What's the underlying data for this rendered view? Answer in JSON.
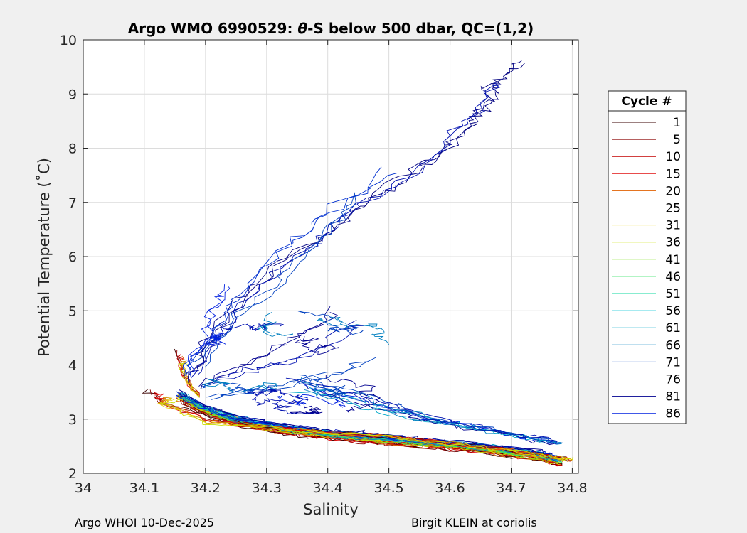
{
  "chart_data": {
    "type": "line",
    "title_prefix": "Argo WMO 6990529: ",
    "title_theta": "θ",
    "title_suffix": "-S below 500 dbar,  QC=(1,2)",
    "xlabel": "Salinity",
    "ylabel": "Potential Temperature (˚C)",
    "xlim": [
      34.0,
      34.81
    ],
    "ylim": [
      2,
      10
    ],
    "xticks": [
      34.0,
      34.1,
      34.2,
      34.3,
      34.4,
      34.5,
      34.6,
      34.7,
      34.8
    ],
    "xtick_labels": [
      "34",
      "34.1",
      "34.2",
      "34.3",
      "34.4",
      "34.5",
      "34.6",
      "34.7",
      "34.8"
    ],
    "yticks": [
      2,
      3,
      4,
      5,
      6,
      7,
      8,
      9,
      10
    ],
    "ytick_labels": [
      "2",
      "3",
      "4",
      "5",
      "6",
      "7",
      "8",
      "9",
      "10"
    ],
    "grid": true,
    "legend_title": "Cycle #",
    "legend_position": "right",
    "series": [
      {
        "name": "1",
        "color": "#3a0000"
      },
      {
        "name": "5",
        "color": "#8b0000"
      },
      {
        "name": "10",
        "color": "#c40000"
      },
      {
        "name": "15",
        "color": "#e01010"
      },
      {
        "name": "20",
        "color": "#e06000"
      },
      {
        "name": "25",
        "color": "#d09000"
      },
      {
        "name": "31",
        "color": "#e8d000"
      },
      {
        "name": "36",
        "color": "#c8e000"
      },
      {
        "name": "41",
        "color": "#80e020"
      },
      {
        "name": "46",
        "color": "#30e060"
      },
      {
        "name": "51",
        "color": "#10d8a0"
      },
      {
        "name": "56",
        "color": "#10c8d8"
      },
      {
        "name": "61",
        "color": "#00a8c8"
      },
      {
        "name": "66",
        "color": "#0080c0"
      },
      {
        "name": "71",
        "color": "#0040c0"
      },
      {
        "name": "76",
        "color": "#0010b0"
      },
      {
        "name": "81",
        "color": "#000090"
      },
      {
        "name": "86",
        "color": "#0020e0"
      }
    ],
    "upper_profiles": [
      {
        "color": "#000080",
        "points": [
          [
            34.72,
            9.62
          ],
          [
            34.7,
            9.45
          ],
          [
            34.68,
            9.2
          ],
          [
            34.665,
            9.05
          ],
          [
            34.67,
            8.9
          ],
          [
            34.655,
            8.7
          ],
          [
            34.65,
            8.55
          ],
          [
            34.63,
            8.35
          ],
          [
            34.6,
            8.1
          ],
          [
            34.57,
            7.85
          ],
          [
            34.54,
            7.6
          ],
          [
            34.5,
            7.3
          ],
          [
            34.46,
            7.0
          ],
          [
            34.42,
            6.7
          ],
          [
            34.38,
            6.3
          ],
          [
            34.33,
            5.9
          ],
          [
            34.28,
            5.4
          ],
          [
            34.24,
            4.9
          ],
          [
            34.2,
            4.4
          ],
          [
            34.18,
            4.0
          ],
          [
            34.17,
            3.7
          ]
        ]
      },
      {
        "color": "#0010b0",
        "points": [
          [
            34.69,
            9.25
          ],
          [
            34.66,
            9.0
          ],
          [
            34.64,
            8.6
          ],
          [
            34.61,
            8.3
          ],
          [
            34.58,
            7.9
          ],
          [
            34.53,
            7.5
          ],
          [
            34.48,
            7.15
          ],
          [
            34.43,
            6.8
          ],
          [
            34.39,
            6.4
          ],
          [
            34.35,
            6.05
          ],
          [
            34.31,
            5.6
          ],
          [
            34.27,
            5.1
          ],
          [
            34.23,
            4.6
          ],
          [
            34.2,
            4.2
          ],
          [
            34.18,
            3.8
          ]
        ]
      },
      {
        "color": "#0030d0",
        "points": [
          [
            34.5,
            7.6
          ],
          [
            34.46,
            7.2
          ],
          [
            34.41,
            6.9
          ],
          [
            34.37,
            6.5
          ],
          [
            34.33,
            6.1
          ],
          [
            34.29,
            5.7
          ],
          [
            34.25,
            5.2
          ],
          [
            34.22,
            4.7
          ],
          [
            34.19,
            4.2
          ],
          [
            34.17,
            3.85
          ]
        ]
      },
      {
        "color": "#0040c0",
        "points": [
          [
            34.45,
            7.1
          ],
          [
            34.42,
            6.7
          ],
          [
            34.38,
            6.2
          ],
          [
            34.34,
            5.8
          ],
          [
            34.3,
            5.3
          ],
          [
            34.26,
            4.9
          ],
          [
            34.22,
            4.45
          ],
          [
            34.19,
            4.0
          ]
        ]
      },
      {
        "color": "#0020e0",
        "points": [
          [
            34.24,
            5.45
          ],
          [
            34.22,
            5.2
          ],
          [
            34.2,
            4.9
          ],
          [
            34.2,
            4.5
          ],
          [
            34.18,
            4.1
          ],
          [
            34.17,
            3.8
          ]
        ]
      },
      {
        "color": "#000090",
        "points": [
          [
            34.41,
            5.0
          ],
          [
            34.38,
            4.7
          ],
          [
            34.35,
            4.5
          ],
          [
            34.3,
            4.2
          ],
          [
            34.26,
            4.0
          ],
          [
            34.22,
            3.8
          ],
          [
            34.19,
            3.6
          ]
        ]
      },
      {
        "color": "#0010b0",
        "points": [
          [
            34.45,
            4.8
          ],
          [
            34.42,
            4.6
          ],
          [
            34.38,
            4.3
          ],
          [
            34.34,
            4.1
          ],
          [
            34.3,
            4.0
          ],
          [
            34.26,
            3.85
          ],
          [
            34.22,
            3.7
          ]
        ]
      },
      {
        "color": "#0040c0",
        "points": [
          [
            34.47,
            4.1
          ],
          [
            34.42,
            3.9
          ],
          [
            34.37,
            3.75
          ],
          [
            34.3,
            3.6
          ],
          [
            34.25,
            3.5
          ],
          [
            34.2,
            3.4
          ]
        ]
      }
    ],
    "main_curve": [
      [
        34.16,
        3.55
      ],
      [
        34.2,
        3.3
      ],
      [
        34.25,
        3.1
      ],
      [
        34.3,
        3.0
      ],
      [
        34.35,
        2.92
      ],
      [
        34.4,
        2.85
      ],
      [
        34.45,
        2.8
      ],
      [
        34.5,
        2.75
      ],
      [
        34.55,
        2.7
      ],
      [
        34.6,
        2.65
      ],
      [
        34.65,
        2.6
      ],
      [
        34.7,
        2.52
      ],
      [
        34.75,
        2.45
      ],
      [
        34.78,
        2.35
      ]
    ],
    "north_branch": [
      [
        34.35,
        3.6
      ],
      [
        34.4,
        3.45
      ],
      [
        34.45,
        3.3
      ],
      [
        34.5,
        3.15
      ],
      [
        34.55,
        3.02
      ],
      [
        34.6,
        2.9
      ],
      [
        34.65,
        2.8
      ],
      [
        34.7,
        2.7
      ],
      [
        34.75,
        2.6
      ],
      [
        34.77,
        2.55
      ]
    ]
  },
  "footer": {
    "left": "Argo WHOI 10-Dec-2025",
    "right": "Birgit KLEIN at coriolis"
  }
}
